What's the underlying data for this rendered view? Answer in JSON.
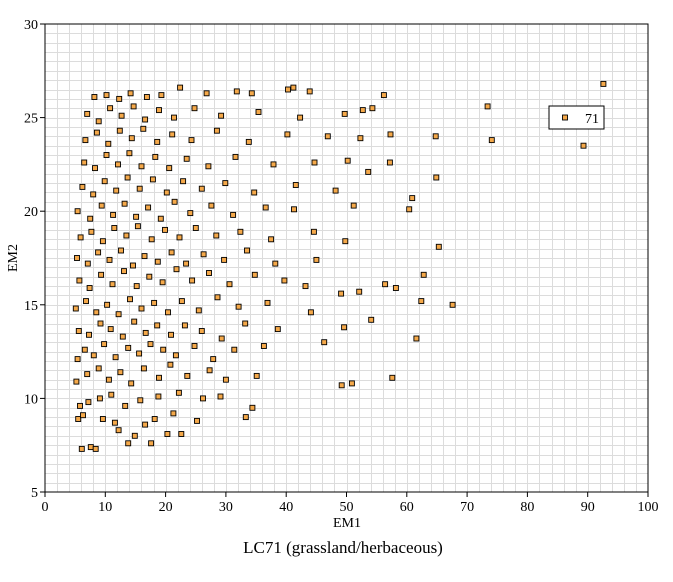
{
  "chart_data": {
    "type": "scatter",
    "title": "LC71 (grassland/herbaceous)",
    "xlabel": "EM1",
    "ylabel": "EM2",
    "xlim": [
      0,
      100
    ],
    "ylim": [
      5,
      30
    ],
    "xticks": [
      0,
      10,
      20,
      30,
      40,
      50,
      60,
      70,
      80,
      90,
      100
    ],
    "yticks": [
      5,
      10,
      15,
      20,
      25,
      30
    ],
    "grid": true,
    "legend": {
      "position": "top-right",
      "entries": [
        "71"
      ]
    },
    "marker": {
      "shape": "square",
      "fill": "#f5a94a",
      "edge": "#000000"
    },
    "series": [
      {
        "name": "71",
        "points": [
          [
            6.1,
            7.3
          ],
          [
            7.6,
            7.4
          ],
          [
            8.4,
            7.3
          ],
          [
            13.8,
            7.6
          ],
          [
            17.6,
            7.6
          ],
          [
            14.9,
            8.0
          ],
          [
            12.2,
            8.3
          ],
          [
            20.3,
            8.1
          ],
          [
            22.6,
            8.1
          ],
          [
            5.5,
            8.9
          ],
          [
            6.3,
            9.1
          ],
          [
            9.6,
            8.9
          ],
          [
            11.6,
            8.7
          ],
          [
            16.6,
            8.6
          ],
          [
            18.2,
            8.9
          ],
          [
            21.3,
            9.2
          ],
          [
            25.2,
            8.8
          ],
          [
            33.3,
            9.0
          ],
          [
            5.8,
            9.6
          ],
          [
            7.2,
            9.8
          ],
          [
            9.1,
            10.0
          ],
          [
            11.0,
            10.2
          ],
          [
            13.3,
            9.6
          ],
          [
            15.8,
            9.9
          ],
          [
            18.8,
            10.1
          ],
          [
            22.2,
            10.3
          ],
          [
            26.2,
            10.0
          ],
          [
            29.1,
            10.1
          ],
          [
            34.4,
            9.5
          ],
          [
            49.2,
            10.7
          ],
          [
            50.9,
            10.8
          ],
          [
            57.6,
            11.1
          ],
          [
            5.2,
            10.9
          ],
          [
            7.0,
            11.3
          ],
          [
            8.9,
            11.6
          ],
          [
            10.6,
            11.0
          ],
          [
            12.5,
            11.4
          ],
          [
            14.3,
            10.8
          ],
          [
            16.4,
            11.6
          ],
          [
            18.9,
            11.1
          ],
          [
            20.8,
            11.8
          ],
          [
            23.6,
            11.2
          ],
          [
            27.3,
            11.5
          ],
          [
            30.0,
            11.0
          ],
          [
            35.1,
            11.2
          ],
          [
            5.4,
            12.1
          ],
          [
            6.6,
            12.6
          ],
          [
            8.1,
            12.3
          ],
          [
            9.8,
            12.9
          ],
          [
            11.7,
            12.2
          ],
          [
            13.8,
            12.7
          ],
          [
            15.6,
            12.4
          ],
          [
            17.5,
            12.9
          ],
          [
            19.6,
            12.6
          ],
          [
            21.7,
            12.3
          ],
          [
            24.8,
            12.8
          ],
          [
            27.9,
            12.1
          ],
          [
            31.4,
            12.6
          ],
          [
            36.3,
            12.8
          ],
          [
            46.3,
            13.0
          ],
          [
            61.6,
            13.2
          ],
          [
            5.6,
            13.6
          ],
          [
            7.3,
            13.4
          ],
          [
            9.2,
            14.0
          ],
          [
            10.9,
            13.7
          ],
          [
            12.9,
            13.3
          ],
          [
            14.8,
            14.1
          ],
          [
            16.7,
            13.5
          ],
          [
            18.6,
            13.9
          ],
          [
            20.9,
            13.4
          ],
          [
            23.2,
            13.9
          ],
          [
            26.0,
            13.6
          ],
          [
            29.3,
            13.2
          ],
          [
            33.2,
            14.0
          ],
          [
            38.6,
            13.7
          ],
          [
            49.6,
            13.8
          ],
          [
            5.1,
            14.8
          ],
          [
            6.8,
            15.2
          ],
          [
            8.5,
            14.6
          ],
          [
            10.3,
            15.0
          ],
          [
            12.2,
            14.5
          ],
          [
            14.1,
            15.3
          ],
          [
            16.0,
            14.8
          ],
          [
            18.1,
            15.1
          ],
          [
            20.4,
            14.6
          ],
          [
            22.7,
            15.2
          ],
          [
            25.5,
            14.7
          ],
          [
            28.6,
            15.4
          ],
          [
            32.1,
            14.9
          ],
          [
            36.9,
            15.1
          ],
          [
            44.1,
            14.6
          ],
          [
            54.1,
            14.2
          ],
          [
            62.4,
            15.2
          ],
          [
            67.6,
            15.0
          ],
          [
            5.7,
            16.3
          ],
          [
            7.4,
            15.9
          ],
          [
            9.3,
            16.6
          ],
          [
            11.2,
            16.1
          ],
          [
            13.1,
            16.8
          ],
          [
            15.2,
            16.0
          ],
          [
            17.3,
            16.5
          ],
          [
            19.5,
            16.2
          ],
          [
            21.8,
            16.9
          ],
          [
            24.4,
            16.3
          ],
          [
            27.2,
            16.7
          ],
          [
            30.6,
            16.1
          ],
          [
            34.8,
            16.6
          ],
          [
            39.7,
            16.3
          ],
          [
            43.2,
            16.0
          ],
          [
            49.1,
            15.6
          ],
          [
            52.1,
            15.7
          ],
          [
            56.4,
            16.1
          ],
          [
            58.2,
            15.9
          ],
          [
            5.3,
            17.5
          ],
          [
            7.1,
            17.2
          ],
          [
            8.8,
            17.8
          ],
          [
            10.7,
            17.4
          ],
          [
            12.6,
            17.9
          ],
          [
            14.6,
            17.1
          ],
          [
            16.5,
            17.6
          ],
          [
            18.7,
            17.3
          ],
          [
            21.0,
            17.8
          ],
          [
            23.4,
            17.2
          ],
          [
            26.3,
            17.7
          ],
          [
            29.7,
            17.4
          ],
          [
            33.5,
            17.9
          ],
          [
            38.2,
            17.2
          ],
          [
            45.0,
            17.4
          ],
          [
            62.8,
            16.6
          ],
          [
            5.9,
            18.6
          ],
          [
            7.7,
            18.9
          ],
          [
            9.6,
            18.4
          ],
          [
            11.5,
            19.1
          ],
          [
            13.5,
            18.7
          ],
          [
            15.4,
            19.2
          ],
          [
            17.7,
            18.5
          ],
          [
            19.9,
            19.0
          ],
          [
            22.3,
            18.6
          ],
          [
            25.0,
            19.1
          ],
          [
            28.4,
            18.7
          ],
          [
            32.4,
            18.9
          ],
          [
            37.5,
            18.5
          ],
          [
            44.6,
            18.9
          ],
          [
            49.8,
            18.4
          ],
          [
            65.3,
            18.1
          ],
          [
            5.4,
            20.0
          ],
          [
            7.5,
            19.6
          ],
          [
            9.4,
            20.3
          ],
          [
            11.3,
            19.8
          ],
          [
            13.2,
            20.4
          ],
          [
            15.1,
            19.7
          ],
          [
            17.1,
            20.2
          ],
          [
            19.2,
            19.6
          ],
          [
            21.5,
            20.5
          ],
          [
            24.1,
            19.9
          ],
          [
            27.6,
            20.3
          ],
          [
            31.2,
            19.8
          ],
          [
            36.6,
            20.2
          ],
          [
            41.3,
            20.1
          ],
          [
            51.2,
            20.3
          ],
          [
            60.4,
            20.1
          ],
          [
            60.9,
            20.7
          ],
          [
            6.2,
            21.3
          ],
          [
            8.0,
            20.9
          ],
          [
            9.9,
            21.6
          ],
          [
            11.8,
            21.1
          ],
          [
            13.7,
            21.8
          ],
          [
            15.7,
            21.2
          ],
          [
            17.9,
            21.7
          ],
          [
            20.2,
            21.0
          ],
          [
            22.9,
            21.6
          ],
          [
            26.0,
            21.2
          ],
          [
            29.9,
            21.5
          ],
          [
            34.7,
            21.0
          ],
          [
            41.6,
            21.4
          ],
          [
            48.2,
            21.1
          ],
          [
            53.6,
            22.1
          ],
          [
            64.9,
            21.8
          ],
          [
            6.5,
            22.6
          ],
          [
            8.3,
            22.3
          ],
          [
            10.2,
            23.0
          ],
          [
            12.1,
            22.5
          ],
          [
            14.0,
            23.1
          ],
          [
            16.0,
            22.4
          ],
          [
            18.3,
            22.9
          ],
          [
            20.6,
            22.3
          ],
          [
            23.5,
            22.8
          ],
          [
            27.1,
            22.4
          ],
          [
            31.6,
            22.9
          ],
          [
            37.9,
            22.5
          ],
          [
            44.7,
            22.6
          ],
          [
            50.2,
            22.7
          ],
          [
            57.2,
            22.6
          ],
          [
            6.7,
            23.8
          ],
          [
            8.6,
            24.2
          ],
          [
            10.5,
            23.6
          ],
          [
            12.4,
            24.3
          ],
          [
            14.4,
            23.9
          ],
          [
            16.3,
            24.4
          ],
          [
            18.6,
            23.7
          ],
          [
            21.1,
            24.1
          ],
          [
            24.3,
            23.8
          ],
          [
            28.5,
            24.3
          ],
          [
            33.8,
            23.7
          ],
          [
            40.2,
            24.1
          ],
          [
            46.9,
            24.0
          ],
          [
            52.3,
            23.9
          ],
          [
            57.3,
            24.1
          ],
          [
            64.8,
            24.0
          ],
          [
            74.1,
            23.8
          ],
          [
            89.3,
            23.5
          ],
          [
            7.0,
            25.2
          ],
          [
            8.9,
            24.8
          ],
          [
            10.8,
            25.5
          ],
          [
            12.7,
            25.1
          ],
          [
            14.7,
            25.6
          ],
          [
            16.6,
            24.9
          ],
          [
            18.9,
            25.4
          ],
          [
            21.4,
            25.0
          ],
          [
            24.8,
            25.5
          ],
          [
            29.2,
            25.1
          ],
          [
            35.4,
            25.3
          ],
          [
            42.3,
            25.0
          ],
          [
            49.7,
            25.2
          ],
          [
            52.7,
            25.4
          ],
          [
            54.3,
            25.5
          ],
          [
            73.4,
            25.6
          ],
          [
            8.2,
            26.1
          ],
          [
            10.2,
            26.2
          ],
          [
            12.3,
            26.0
          ],
          [
            14.2,
            26.3
          ],
          [
            16.9,
            26.1
          ],
          [
            19.3,
            26.2
          ],
          [
            22.4,
            26.6
          ],
          [
            26.8,
            26.3
          ],
          [
            31.8,
            26.4
          ],
          [
            34.3,
            26.3
          ],
          [
            40.3,
            26.5
          ],
          [
            41.2,
            26.6
          ],
          [
            43.9,
            26.4
          ],
          [
            56.2,
            26.2
          ],
          [
            92.6,
            26.8
          ]
        ]
      }
    ]
  }
}
